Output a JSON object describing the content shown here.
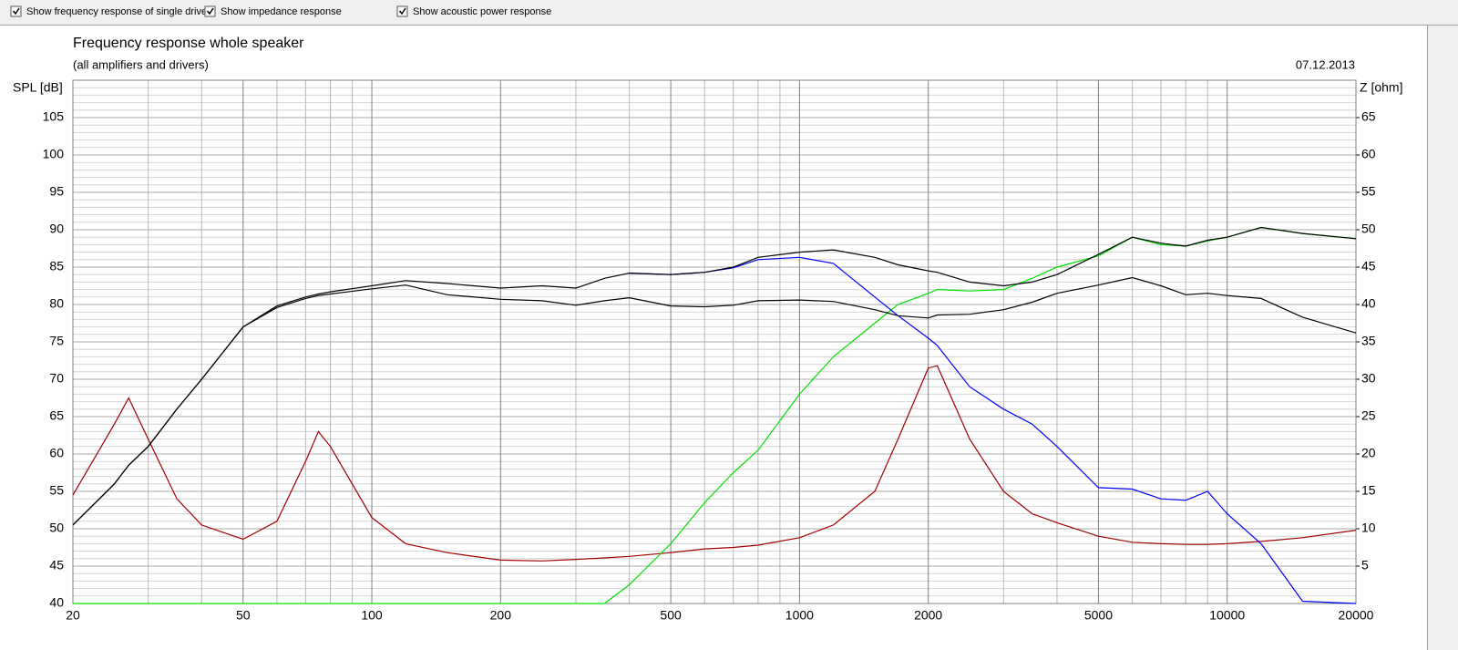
{
  "toolbar": {
    "checkboxes": [
      {
        "label": "Show frequency response of single drive",
        "checked": true
      },
      {
        "label": "Show impedance response",
        "checked": true
      },
      {
        "label": "Show acoustic power response",
        "checked": true
      }
    ]
  },
  "chart_data": {
    "type": "line",
    "title": "Frequency response whole speaker",
    "subtitle": "(all amplifiers and drivers)",
    "date": "07.12.2013",
    "y_label": "SPL [dB]",
    "y2_label": "Z [ohm]",
    "log_x": true,
    "grid": true,
    "x": [
      20,
      25,
      27,
      30,
      35,
      40,
      50,
      60,
      70,
      75,
      80,
      100,
      120,
      150,
      200,
      250,
      300,
      350,
      400,
      500,
      600,
      700,
      800,
      1000,
      1200,
      1500,
      1700,
      2000,
      2100,
      2500,
      3000,
      3500,
      4000,
      5000,
      6000,
      7000,
      8000,
      9000,
      10000,
      12000,
      15000,
      20000
    ],
    "xlim": [
      20,
      20000
    ],
    "xticks": [
      20,
      50,
      100,
      200,
      500,
      1000,
      2000,
      5000,
      10000,
      20000
    ],
    "minor_xticks": [
      30,
      40,
      60,
      70,
      80,
      90,
      300,
      400,
      600,
      700,
      800,
      900,
      3000,
      4000,
      6000,
      7000,
      8000,
      9000
    ],
    "ylim": [
      40,
      110
    ],
    "yticks": [
      40,
      45,
      50,
      55,
      60,
      65,
      70,
      75,
      80,
      85,
      90,
      95,
      100,
      105
    ],
    "minor_yticks": [
      41,
      42,
      43,
      44,
      46,
      47,
      48,
      49,
      51,
      52,
      53,
      54,
      56,
      57,
      58,
      59,
      61,
      62,
      63,
      64,
      66,
      67,
      68,
      69,
      71,
      72,
      73,
      74,
      76,
      77,
      78,
      79,
      81,
      82,
      83,
      84,
      86,
      87,
      88,
      89,
      91,
      92,
      93,
      94,
      96,
      97,
      98,
      99,
      101,
      102,
      103,
      104,
      106,
      107,
      108,
      109
    ],
    "y2lim": [
      0,
      70
    ],
    "y2ticks": [
      5,
      10,
      15,
      20,
      25,
      30,
      35,
      40,
      45,
      50,
      55,
      60,
      65
    ],
    "series": [
      {
        "color": "#000000",
        "values": [
          50.5,
          56,
          58.5,
          61,
          66,
          70,
          77,
          79.8,
          81,
          81.4,
          81.7,
          82.5,
          83.2,
          82.8,
          82.2,
          82.5,
          82.2,
          83.5,
          84.2,
          84,
          84.3,
          85,
          86.3,
          87,
          87.3,
          86.3,
          85.3,
          84.5,
          84.3,
          83,
          82.5,
          83,
          84,
          86.7,
          89,
          88.2,
          87.8,
          88.6,
          89,
          90.3,
          89.5,
          88.8
        ]
      },
      {
        "color": "#000000",
        "values": [
          50.5,
          56,
          58.5,
          61,
          66,
          70,
          77,
          79.6,
          80.8,
          81.2,
          81.4,
          82.1,
          82.6,
          81.3,
          80.7,
          80.5,
          79.9,
          80.5,
          80.9,
          79.8,
          79.7,
          79.9,
          80.5,
          80.6,
          80.4,
          79.3,
          78.5,
          78.2,
          78.6,
          78.7,
          79.3,
          80.3,
          81.5,
          82.6,
          83.6,
          82.5,
          81.3,
          81.5,
          81.2,
          80.8,
          78.3,
          76.2
        ]
      },
      {
        "color": "#0000ff",
        "values": [
          null,
          null,
          null,
          null,
          null,
          null,
          null,
          null,
          null,
          null,
          null,
          null,
          null,
          null,
          null,
          null,
          null,
          null,
          84.2,
          84,
          84.3,
          84.9,
          86,
          86.3,
          85.5,
          81,
          78.5,
          75.5,
          74.5,
          69,
          66,
          64,
          61,
          55.5,
          55.3,
          54,
          53.8,
          55,
          52,
          48,
          40.3,
          40
        ]
      },
      {
        "color": "#00e000",
        "values": [
          40,
          40,
          40,
          40,
          40,
          40,
          40,
          40,
          40,
          40,
          40,
          40,
          40,
          40,
          40,
          40,
          40,
          40,
          42.5,
          48,
          53.5,
          57.5,
          60.5,
          68,
          73,
          77.5,
          80,
          81.5,
          82,
          81.8,
          82,
          83.5,
          85,
          86.5,
          89,
          88,
          87.8,
          88.5,
          89,
          90.3,
          89.5,
          88.8
        ]
      },
      {
        "color": "#a00000",
        "axis": "y2",
        "values": [
          14.5,
          24,
          27.5,
          22,
          14,
          10.5,
          8.6,
          11,
          19,
          23,
          21,
          11.5,
          8,
          6.8,
          5.8,
          5.7,
          5.9,
          6.1,
          6.3,
          6.8,
          7.3,
          7.5,
          7.8,
          8.8,
          10.5,
          15,
          22,
          31.5,
          31.8,
          22,
          15,
          12,
          10.8,
          9,
          8.2,
          8,
          7.9,
          7.9,
          8,
          8.3,
          8.8,
          9.8
        ]
      }
    ]
  }
}
